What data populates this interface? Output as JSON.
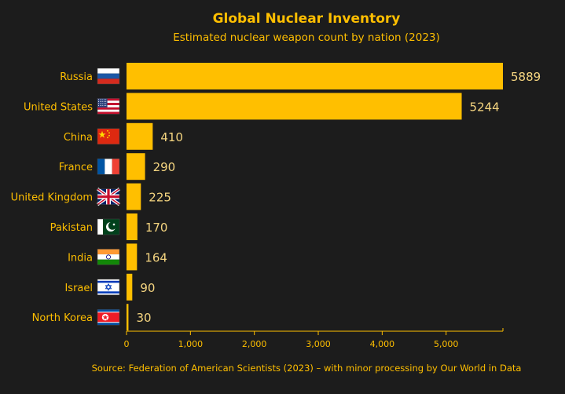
{
  "chart_data": {
    "type": "bar",
    "orientation": "horizontal",
    "title": "Global Nuclear Inventory",
    "subtitle": "Estimated nuclear weapon count by nation (2023)",
    "categories": [
      "Russia",
      "United States",
      "China",
      "France",
      "United Kingdom",
      "Pakistan",
      "India",
      "Israel",
      "North Korea"
    ],
    "values": [
      5889,
      5244,
      410,
      290,
      225,
      170,
      164,
      90,
      30
    ],
    "value_labels": [
      "5889",
      "5244",
      "410",
      "290",
      "225",
      "170",
      "164",
      "90",
      "30"
    ],
    "flags": [
      "russia-flag-icon",
      "united-states-flag-icon",
      "china-flag-icon",
      "france-flag-icon",
      "united-kingdom-flag-icon",
      "pakistan-flag-icon",
      "india-flag-icon",
      "israel-flag-icon",
      "north-korea-flag-icon"
    ],
    "xlim": [
      0,
      5889
    ],
    "xticks": [
      0,
      1000,
      2000,
      3000,
      4000,
      5000
    ],
    "xtick_labels": [
      "0",
      "1,000",
      "2,000",
      "3,000",
      "4,000",
      "5,000"
    ],
    "grid": false,
    "legend": "none",
    "source": "Source: Federation of American Scientists (2023) – with minor processing by Our World in Data",
    "colors": {
      "background": "#1c1c1c",
      "bar": "#ffbf00",
      "text": "#ffbf00",
      "value_label": "#f5d580"
    }
  }
}
